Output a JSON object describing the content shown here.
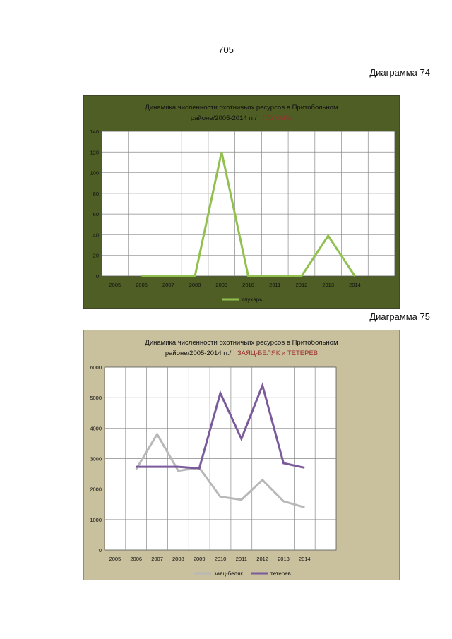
{
  "page": {
    "number": "705",
    "diagram_74_label": "Диаграмма 74",
    "diagram_75_label": "Диаграмма 75"
  },
  "chart_data": [
    {
      "type": "line",
      "title_line1": "Динамика численности охотничьих ресурсов  в Притобольном",
      "title_line2": "районе/2005-2014 гг./",
      "title_highlight": "ГЛУХАРЬ",
      "categories": [
        "2005",
        "2006",
        "2007",
        "2008",
        "2009",
        "2010",
        "2011",
        "2012",
        "2013",
        "2014"
      ],
      "series": [
        {
          "name": "глухарь",
          "x": [
            "2006",
            "2007",
            "2008",
            "2009",
            "2010",
            "2011",
            "2012",
            "2013",
            "2014"
          ],
          "values": [
            0,
            0,
            0,
            120,
            0,
            0,
            0,
            39,
            0
          ],
          "color": "#92c04e"
        }
      ],
      "ylim": [
        0,
        140
      ],
      "yticks": [
        "0",
        "20",
        "40",
        "60",
        "80",
        "100",
        "120",
        "140"
      ],
      "grid": true,
      "legend": "bottom",
      "colors": {
        "outer": "#4e5e25",
        "plot": "#ffffff",
        "title_highlight": "#9b2f2f"
      }
    },
    {
      "type": "line",
      "title_line1": "Динамика численности  охотничьих ресурсов   в Притобольном",
      "title_line2": "районе/2005-2014   гг./",
      "title_highlight": "ЗАЯЦ-БЕЛЯК и ТЕТЕРЕВ",
      "categories": [
        "2005",
        "2006",
        "2007",
        "2008",
        "2009",
        "2010",
        "2011",
        "2012",
        "2013",
        "2014"
      ],
      "series": [
        {
          "name": "заяц-беляк",
          "x": [
            "2006",
            "2007",
            "2008",
            "2009",
            "2010",
            "2011",
            "2012",
            "2013",
            "2014"
          ],
          "values": [
            2650,
            3800,
            2600,
            2700,
            1750,
            1650,
            2300,
            1600,
            1400
          ],
          "color": "#b8b8b8"
        },
        {
          "name": "тетерев",
          "x": [
            "2006",
            "2007",
            "2008",
            "2009",
            "2010",
            "2011",
            "2012",
            "2013",
            "2014"
          ],
          "values": [
            2730,
            2730,
            2730,
            2680,
            5150,
            3650,
            5400,
            2850,
            2700
          ],
          "color": "#7b5a9b"
        }
      ],
      "ylim": [
        0,
        6000
      ],
      "yticks": [
        "0",
        "1000",
        "2000",
        "3000",
        "4000",
        "5000",
        "6000"
      ],
      "grid": true,
      "legend": "bottom",
      "colors": {
        "outer": "#c9c09e",
        "plot": "#ffffff",
        "title_highlight": "#9b2f2f"
      }
    }
  ]
}
